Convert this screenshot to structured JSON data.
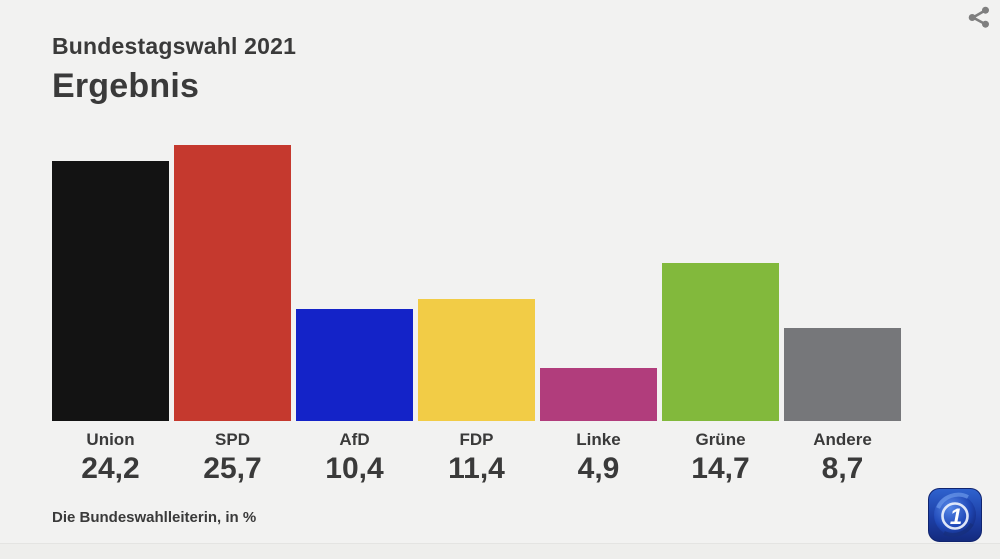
{
  "header": {
    "subtitle": "Bundestagswahl 2021",
    "title": "Ergebnis"
  },
  "toolbar": {
    "share_icon": "share-icon"
  },
  "footer": {
    "source_note": "Die Bundeswahlleiterin, in %"
  },
  "branding": {
    "logo": "ard-tagesschau-logo"
  },
  "colors": {
    "background": "#f2f2f1",
    "text": "#3a3a3a",
    "icon_gray": "#7f7f7f"
  },
  "chart_data": {
    "type": "bar",
    "title": "Bundestagswahl 2021",
    "subtitle": "Ergebnis",
    "categories": [
      "Union",
      "SPD",
      "AfD",
      "FDP",
      "Linke",
      "Grüne",
      "Andere"
    ],
    "values": [
      24.2,
      25.7,
      10.4,
      11.4,
      4.9,
      14.7,
      8.7
    ],
    "value_labels": [
      "24,2",
      "25,7",
      "10,4",
      "11,4",
      "4,9",
      "14,7",
      "8,7"
    ],
    "bar_colors": [
      "#131313",
      "#c5392e",
      "#1423c8",
      "#f2cc46",
      "#b13d7c",
      "#82b93c",
      "#76777a"
    ],
    "unit": "%",
    "source": "Die Bundeswahlleiterin, in %",
    "ylim": [
      0,
      26
    ],
    "grid": false,
    "legend": "none",
    "value_label_position": "below-axis"
  }
}
